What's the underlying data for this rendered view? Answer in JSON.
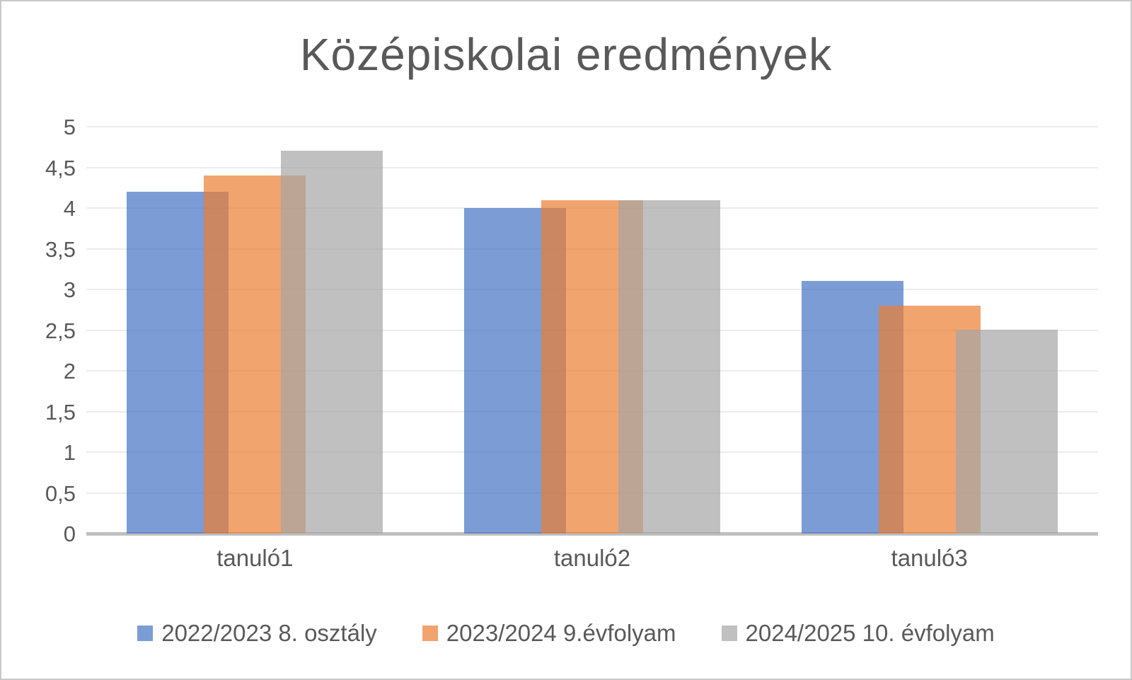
{
  "chart_data": {
    "type": "bar",
    "title": "Középiskolai eredmények",
    "categories": [
      "tanuló1",
      "tanuló2",
      "tanuló3"
    ],
    "series": [
      {
        "name": "2022/2023 8. osztály",
        "color": "#4472C4",
        "values": [
          4.2,
          4.0,
          3.1
        ]
      },
      {
        "name": "2023/2024 9.évfolyam",
        "color": "#ED7D31",
        "values": [
          4.4,
          4.1,
          2.8
        ]
      },
      {
        "name": "2024/2025 10. évfolyam",
        "color": "#A5A5A5",
        "values": [
          4.7,
          4.1,
          2.5
        ]
      }
    ],
    "y_axis": {
      "min": 0,
      "max": 5,
      "step": 0.5,
      "tick_labels": [
        "0",
        "0,5",
        "1",
        "1,5",
        "2",
        "2,5",
        "3",
        "3,5",
        "4",
        "4,5",
        "5"
      ]
    },
    "xlabel": "",
    "ylabel": "",
    "legend_position": "bottom",
    "grid": true,
    "style": {
      "fill_opacity": 0.7,
      "text_color": "#595959",
      "grid_color": "#ECECEC",
      "axis_color": "#BFBFBF",
      "background": "#FFFFFF",
      "border_color": "#C9C9C9"
    }
  }
}
